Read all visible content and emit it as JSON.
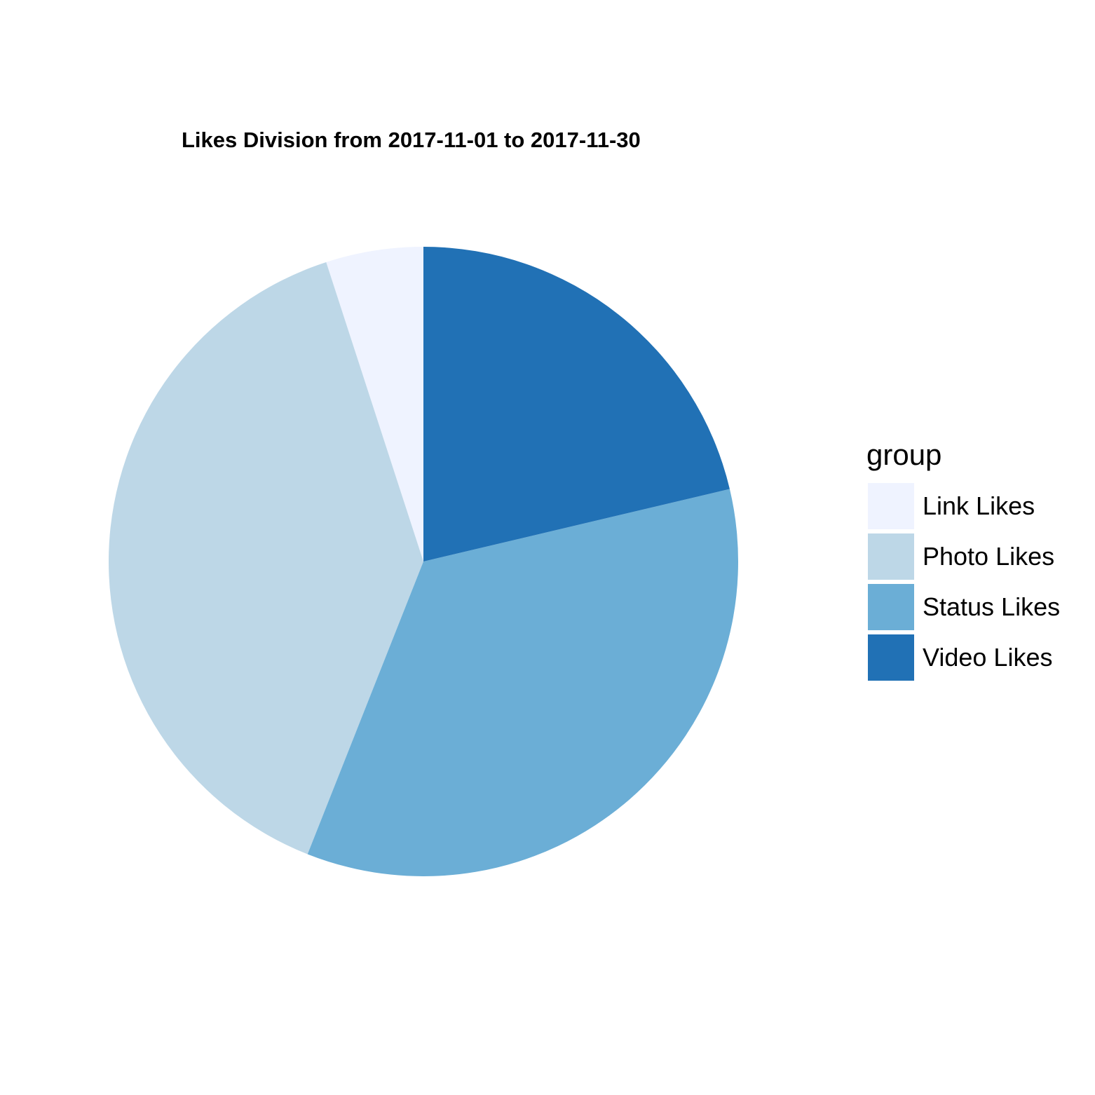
{
  "chart_data": {
    "type": "pie",
    "title": "Likes Division from 2017-11-01 to 2017-11-30",
    "legend_title": "group",
    "legend_position": "right",
    "categories": [
      "Link Likes",
      "Photo Likes",
      "Status Likes",
      "Video Likes"
    ],
    "values": [
      5,
      39,
      34.7,
      21.3
    ],
    "colors": [
      "#EFF3FF",
      "#BDD7E7",
      "#6BAED6",
      "#2171B5"
    ],
    "direction": "counterclockwise",
    "start": "top"
  }
}
